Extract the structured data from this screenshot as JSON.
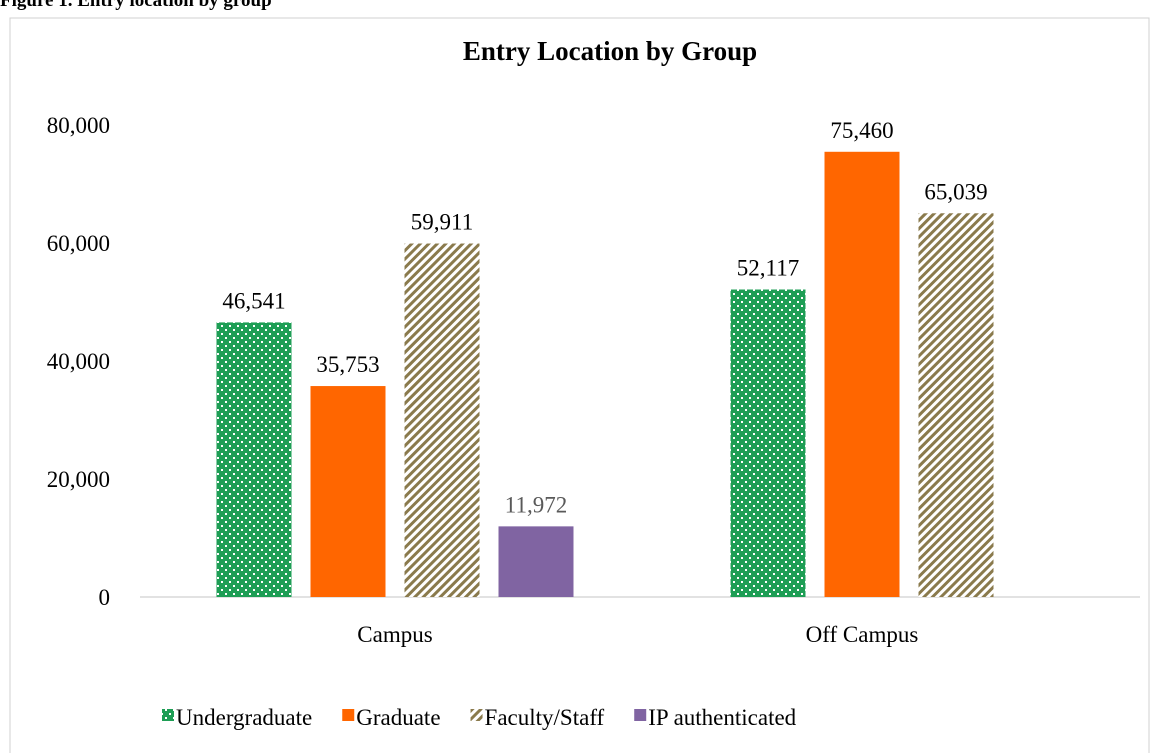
{
  "caption": "Figure 1. Entry location by group",
  "chart_data": {
    "type": "bar",
    "title": "Entry Location by Group",
    "categories": [
      "Campus",
      "Off Campus"
    ],
    "series": [
      {
        "name": "Undergraduate",
        "color": "#1e9e55",
        "pattern": "dots",
        "values": [
          46541,
          52117
        ],
        "value_labels": [
          "46,541",
          "52,117"
        ]
      },
      {
        "name": "Graduate",
        "color": "#ff6600",
        "values": [
          35753,
          75460
        ],
        "value_labels": [
          "35,753",
          "75,460"
        ]
      },
      {
        "name": "Faculty/Staff",
        "color": "#8a7a4c",
        "pattern": "hatch",
        "values": [
          59911,
          65039
        ],
        "value_labels": [
          "59,911",
          "65,039"
        ]
      },
      {
        "name": "IP authenticated",
        "color": "#8064a2",
        "values": [
          11972,
          null
        ],
        "value_labels": [
          "11,972",
          null
        ]
      }
    ],
    "ylim": [
      0,
      80000
    ],
    "yticks": [
      0,
      {
        "value": 20000,
        "label": "20,000"
      },
      {
        "value": 40000,
        "label": "40,000"
      },
      {
        "value": 60000,
        "label": "60,000"
      },
      {
        "value": 80000,
        "label": "80,000"
      }
    ],
    "grid": false,
    "legend": "bottom"
  }
}
